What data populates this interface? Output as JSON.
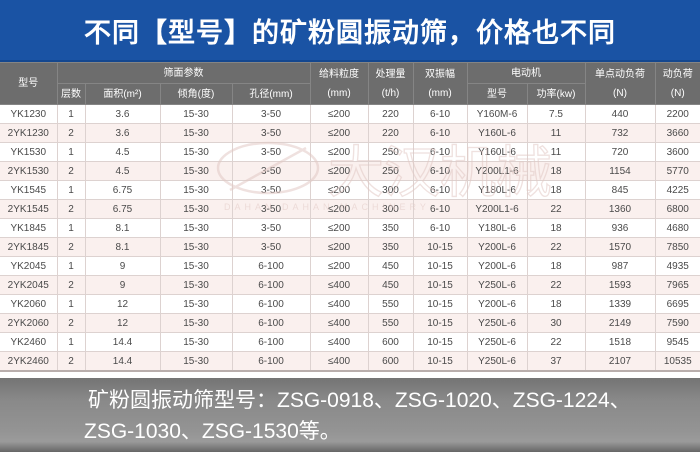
{
  "banner": {
    "title": "不同【型号】的矿粉圆振动筛，价格也不同"
  },
  "colors": {
    "banner_bg": "#1a53a4",
    "table_header_bg": "#6d6d6d",
    "row_alt_bg": "#faf0ee",
    "footer_text": "#ffffff",
    "watermark": "#e2c9c5"
  },
  "table": {
    "header": {
      "model": "型号",
      "screen_params_group": "筛面参数",
      "layers": "层数",
      "area": "面积(m²)",
      "incline": "倾角(度)",
      "aperture": "孔径(mm)",
      "feed_size_l1": "给料粒度",
      "feed_size_l2": "(mm)",
      "capacity_l1": "处理量",
      "capacity_l2": "(t/h)",
      "amplitude_l1": "双振幅",
      "amplitude_l2": "(mm)",
      "motor_group": "电动机",
      "motor_model": "型号",
      "motor_power": "功率(kw)",
      "point_load_l1": "单点动负荷",
      "point_load_l2": "(N)",
      "dyn_load_l1": "动负荷",
      "dyn_load_l2": "(N)"
    },
    "rows": [
      [
        "YK1230",
        "1",
        "3.6",
        "15-30",
        "3-50",
        "≤200",
        "220",
        "6-10",
        "Y160M-6",
        "7.5",
        "440",
        "2200"
      ],
      [
        "2YK1230",
        "2",
        "3.6",
        "15-30",
        "3-50",
        "≤200",
        "220",
        "6-10",
        "Y160L-6",
        "11",
        "732",
        "3660"
      ],
      [
        "YK1530",
        "1",
        "4.5",
        "15-30",
        "3-50",
        "≤200",
        "250",
        "6-10",
        "Y160L-6",
        "11",
        "720",
        "3600"
      ],
      [
        "2YK1530",
        "2",
        "4.5",
        "15-30",
        "3-50",
        "≤200",
        "250",
        "6-10",
        "Y200L1-6",
        "18",
        "1154",
        "5770"
      ],
      [
        "YK1545",
        "1",
        "6.75",
        "15-30",
        "3-50",
        "≤200",
        "300",
        "6-10",
        "Y180L-6",
        "18",
        "845",
        "4225"
      ],
      [
        "2YK1545",
        "2",
        "6.75",
        "15-30",
        "3-50",
        "≤200",
        "300",
        "6-10",
        "Y200L1-6",
        "22",
        "1360",
        "6800"
      ],
      [
        "YK1845",
        "1",
        "8.1",
        "15-30",
        "3-50",
        "≤200",
        "350",
        "6-10",
        "Y180L-6",
        "18",
        "936",
        "4680"
      ],
      [
        "2YK1845",
        "2",
        "8.1",
        "15-30",
        "3-50",
        "≤200",
        "350",
        "10-15",
        "Y200L-6",
        "22",
        "1570",
        "7850"
      ],
      [
        "YK2045",
        "1",
        "9",
        "15-30",
        "6-100",
        "≤200",
        "450",
        "10-15",
        "Y200L-6",
        "18",
        "987",
        "4935"
      ],
      [
        "2YK2045",
        "2",
        "9",
        "15-30",
        "6-100",
        "≤400",
        "450",
        "10-15",
        "Y250L-6",
        "22",
        "1593",
        "7965"
      ],
      [
        "YK2060",
        "1",
        "12",
        "15-30",
        "6-100",
        "≤400",
        "550",
        "10-15",
        "Y200L-6",
        "18",
        "1339",
        "6695"
      ],
      [
        "2YK2060",
        "2",
        "12",
        "15-30",
        "6-100",
        "≤400",
        "550",
        "10-15",
        "Y250L-6",
        "30",
        "2149",
        "7590"
      ],
      [
        "YK2460",
        "1",
        "14.4",
        "15-30",
        "6-100",
        "≤400",
        "600",
        "10-15",
        "Y250L-6",
        "22",
        "1518",
        "9545"
      ],
      [
        "2YK2460",
        "2",
        "14.4",
        "15-30",
        "6-100",
        "≤400",
        "600",
        "10-15",
        "Y250L-6",
        "37",
        "2107",
        "10535"
      ]
    ]
  },
  "watermark": {
    "logo_text": "大汉机械",
    "caption": "DAHAN   DAHAN   MACHINERY"
  },
  "footer": {
    "line1": "矿粉圆振动筛型号：ZSG-0918、ZSG-1020、ZSG-1224、",
    "line2": "ZSG-1030、ZSG-1530等。"
  }
}
